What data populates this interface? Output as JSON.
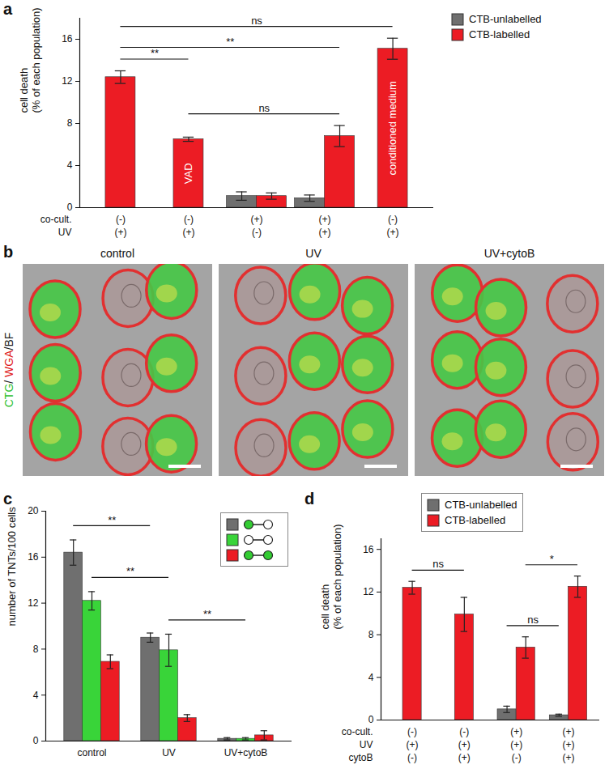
{
  "chart_data": [
    {
      "panel": "a",
      "type": "bar",
      "ylabel": [
        "cell death",
        "(% of each population)"
      ],
      "categories": [
        null,
        null,
        null,
        null,
        null
      ],
      "x_rows": [
        {
          "label": "co-cult.",
          "values": [
            "(-)",
            "(-)",
            "(+)",
            "(+)",
            "(-)"
          ]
        },
        {
          "label": "UV",
          "values": [
            "(+)",
            "(+)",
            "(-)",
            "(+)",
            "(+)"
          ]
        }
      ],
      "bar_labels": [
        null,
        "VAD",
        null,
        null,
        "conditioned medium"
      ],
      "series": [
        {
          "name": "CTB-unlabelled",
          "color": "#6f6f6f",
          "values": [
            null,
            null,
            1.1,
            0.9,
            null
          ],
          "errors": [
            null,
            null,
            0.4,
            0.3,
            null
          ]
        },
        {
          "name": "CTB-labelled",
          "color": "#ec1c24",
          "values": [
            12.4,
            6.5,
            1.1,
            6.8,
            15.1
          ],
          "errors": [
            0.6,
            0.2,
            0.3,
            1.0,
            1.0
          ]
        }
      ],
      "comparisons": [
        {
          "from": [
            0,
            1
          ],
          "to": [
            1,
            1
          ],
          "label": "**"
        },
        {
          "from": [
            1,
            1
          ],
          "to": [
            3,
            1
          ],
          "label": "ns"
        },
        {
          "from": [
            0,
            1
          ],
          "to": [
            3,
            1
          ],
          "label": "**"
        },
        {
          "from": [
            0,
            1
          ],
          "to": [
            4,
            1
          ],
          "label": "ns"
        }
      ],
      "ylim": [
        0,
        18
      ],
      "yticks": [
        0,
        4,
        8,
        12,
        16
      ],
      "legend": "right"
    },
    {
      "panel": "c",
      "type": "bar",
      "ylabel": [
        "number of TNTs/100 cells"
      ],
      "categories": [
        "control",
        "UV",
        "UV+cytoB"
      ],
      "series": [
        {
          "color": "#6f6f6f",
          "marker": "filled-empty",
          "values": [
            16.4,
            9.0,
            0.2
          ],
          "errors": [
            1.1,
            0.4,
            0.1
          ]
        },
        {
          "color": "#39d439",
          "marker": "empty-empty",
          "values": [
            12.2,
            7.9,
            0.2
          ],
          "errors": [
            0.8,
            1.4,
            0.1
          ]
        },
        {
          "color": "#ec1c24",
          "marker": "filled-filled",
          "values": [
            6.9,
            2.0,
            0.5
          ],
          "errors": [
            0.6,
            0.3,
            0.4
          ]
        }
      ],
      "comparisons": [
        {
          "from": [
            0,
            0
          ],
          "to": [
            1,
            0
          ],
          "label": "**"
        },
        {
          "from": [
            0,
            1
          ],
          "to": [
            1,
            1
          ],
          "label": "**"
        },
        {
          "from": [
            1,
            1
          ],
          "to": [
            2,
            1
          ],
          "label": "**"
        }
      ],
      "ylim": [
        0,
        20
      ],
      "yticks": [
        0,
        4,
        8,
        12,
        16,
        20
      ],
      "legend": "top-right"
    },
    {
      "panel": "d",
      "type": "bar",
      "ylabel": [
        "cell death",
        "(% of each population)"
      ],
      "categories": [
        null,
        null,
        null,
        null
      ],
      "x_rows": [
        {
          "label": "co-cult.",
          "values": [
            "(-)",
            "(-)",
            "(+)",
            "(+)"
          ]
        },
        {
          "label": "UV",
          "values": [
            "(+)",
            "(+)",
            "(+)",
            "(+)"
          ]
        },
        {
          "label": "cytoB",
          "values": [
            "(-)",
            "(+)",
            "(-)",
            "(+)"
          ]
        }
      ],
      "series": [
        {
          "name": "CTB-unlabelled",
          "color": "#6f6f6f",
          "values": [
            null,
            null,
            1.0,
            0.45
          ],
          "errors": [
            null,
            null,
            0.3,
            0.1
          ]
        },
        {
          "name": "CTB-labelled",
          "color": "#ec1c24",
          "values": [
            12.4,
            9.9,
            6.8,
            12.5
          ],
          "errors": [
            0.6,
            1.6,
            1.0,
            1.0
          ]
        }
      ],
      "comparisons": [
        {
          "from": [
            0,
            1
          ],
          "to": [
            1,
            1
          ],
          "label": "ns"
        },
        {
          "from": [
            2,
            0
          ],
          "to": [
            3,
            0
          ],
          "label": "ns"
        },
        {
          "from": [
            2,
            1
          ],
          "to": [
            3,
            1
          ],
          "label": "*"
        }
      ],
      "ylim": [
        0,
        17
      ],
      "yticks": [
        0,
        4,
        8,
        12,
        16
      ],
      "legend": "top"
    }
  ],
  "panel_b": {
    "panel": "b",
    "channel_label": [
      {
        "text": "CTG",
        "color": "#2fbf2f"
      },
      {
        "text": "/ ",
        "color": "#222222"
      },
      {
        "text": "WGA",
        "color": "#e01b1b"
      },
      {
        "text": "/BF",
        "color": "#222222"
      }
    ],
    "titles": [
      "control",
      "UV",
      "UV+cytoB"
    ]
  }
}
